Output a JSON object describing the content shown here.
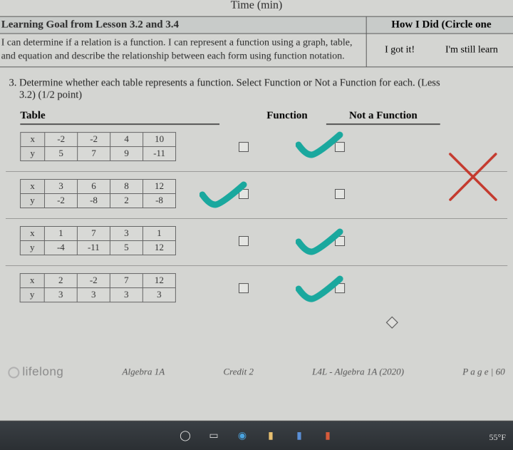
{
  "time_label": "Time (min)",
  "goal": {
    "heading": "Learning Goal from Lesson 3.2 and 3.4",
    "body": "I can determine if a relation is a function. I can represent a function using a graph, table, and equation and describe the relationship between each form using function notation.",
    "how_heading": "How I Did (Circle one",
    "got_it": "I got it!",
    "still": "I'm still learn"
  },
  "question": {
    "num": "3.",
    "text": "Determine whether each table represents a function. Select Function or Not a Function for each. (Less",
    "ref": "3.2) (1/2 point)"
  },
  "headers": {
    "table": "Table",
    "func": "Function",
    "notfunc": "Not a Function"
  },
  "tables": [
    {
      "x": [
        "-2",
        "-2",
        "4",
        "10"
      ],
      "y": [
        "5",
        "7",
        "9",
        "-11"
      ]
    },
    {
      "x": [
        "3",
        "6",
        "8",
        "12"
      ],
      "y": [
        "-2",
        "-8",
        "2",
        "-8"
      ]
    },
    {
      "x": [
        "1",
        "7",
        "3",
        "1"
      ],
      "y": [
        "-4",
        "-11",
        "5",
        "12"
      ]
    },
    {
      "x": [
        "2",
        "-2",
        "7",
        "12"
      ],
      "y": [
        "3",
        "3",
        "3",
        "3"
      ]
    }
  ],
  "marks": {
    "teal": "#1aa89e",
    "red": "#c43a2e",
    "checks": [
      {
        "row": 0,
        "col": "notfunc"
      },
      {
        "row": 1,
        "col": "func"
      },
      {
        "row": 2,
        "col": "notfunc"
      },
      {
        "row": 3,
        "col": "notfunc"
      }
    ]
  },
  "footer": {
    "brand": "lifelong",
    "course": "Algebra 1A",
    "credit": "Credit 2",
    "code": "L4L - Algebra 1A (2020)",
    "page": "P a g e | 60"
  },
  "taskbar": {
    "temp": "55°F"
  },
  "colors": {
    "page_bg": "#d4d5d2",
    "border": "#5a5a5a",
    "header_bg": "#c8cbc9"
  }
}
